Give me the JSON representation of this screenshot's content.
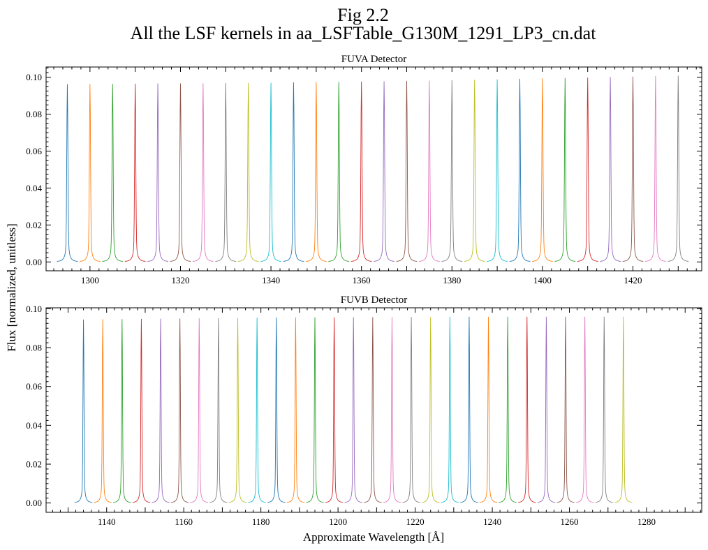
{
  "figure": {
    "title_line1": "Fig 2.2",
    "title_line2": "All the LSF kernels in aa_LSFTable_G130M_1291_LP3_cn.dat",
    "ylabel": "Flux [normalized, unitless]",
    "xlabel": "Approximate Wavelength [Å]"
  },
  "colors": [
    "#1f77b4",
    "#ff7f0e",
    "#2ca02c",
    "#d62728",
    "#9467bd",
    "#8c564b",
    "#e377c2",
    "#7f7f7f",
    "#bcbd22",
    "#17becf"
  ],
  "chart_data": [
    {
      "type": "line",
      "title": "FUVA Detector",
      "xlabel": "",
      "ylabel": "Flux [normalized, unitless]",
      "xlim": [
        1290.3,
        1435.2
      ],
      "ylim": [
        -0.0048,
        0.1055
      ],
      "xticks": [
        1300,
        1320,
        1340,
        1360,
        1380,
        1400,
        1420
      ],
      "yticks": [
        0.0,
        0.02,
        0.04,
        0.06,
        0.08,
        0.1
      ],
      "ytick_labels": [
        "0.00",
        "0.02",
        "0.04",
        "0.06",
        "0.08",
        "0.10"
      ],
      "kernel_half_width": 2.3,
      "kernel_sigma": 0.12,
      "series": [
        {
          "center": 1295,
          "peak": 0.0962
        },
        {
          "center": 1300,
          "peak": 0.0963
        },
        {
          "center": 1305,
          "peak": 0.0964
        },
        {
          "center": 1310,
          "peak": 0.0965
        },
        {
          "center": 1315,
          "peak": 0.0966
        },
        {
          "center": 1320,
          "peak": 0.0966
        },
        {
          "center": 1325,
          "peak": 0.0967
        },
        {
          "center": 1330,
          "peak": 0.0968
        },
        {
          "center": 1335,
          "peak": 0.0969
        },
        {
          "center": 1340,
          "peak": 0.097
        },
        {
          "center": 1345,
          "peak": 0.0972
        },
        {
          "center": 1350,
          "peak": 0.0973
        },
        {
          "center": 1355,
          "peak": 0.0974
        },
        {
          "center": 1360,
          "peak": 0.0976
        },
        {
          "center": 1365,
          "peak": 0.0978
        },
        {
          "center": 1370,
          "peak": 0.098
        },
        {
          "center": 1375,
          "peak": 0.0982
        },
        {
          "center": 1380,
          "peak": 0.0984
        },
        {
          "center": 1385,
          "peak": 0.0986
        },
        {
          "center": 1390,
          "peak": 0.0988
        },
        {
          "center": 1395,
          "peak": 0.0991
        },
        {
          "center": 1400,
          "peak": 0.0993
        },
        {
          "center": 1405,
          "peak": 0.0996
        },
        {
          "center": 1410,
          "peak": 0.0998
        },
        {
          "center": 1415,
          "peak": 0.1001
        },
        {
          "center": 1420,
          "peak": 0.1003
        },
        {
          "center": 1425,
          "peak": 0.1006
        },
        {
          "center": 1430,
          "peak": 0.1008
        }
      ]
    },
    {
      "type": "line",
      "title": "FUVB Detector",
      "xlabel": "Approximate Wavelength [Å]",
      "ylabel": "Flux [normalized, unitless]",
      "xlim": [
        1124.3,
        1294.3
      ],
      "ylim": [
        -0.0048,
        0.1005
      ],
      "xticks": [
        1140,
        1160,
        1180,
        1200,
        1220,
        1240,
        1260,
        1280
      ],
      "yticks": [
        0.0,
        0.02,
        0.04,
        0.06,
        0.08,
        0.1
      ],
      "ytick_labels": [
        "0.00",
        "0.02",
        "0.04",
        "0.06",
        "0.08",
        "0.10"
      ],
      "kernel_half_width": 2.3,
      "kernel_sigma": 0.12,
      "series": [
        {
          "center": 1134,
          "peak": 0.0945
        },
        {
          "center": 1139,
          "peak": 0.0946
        },
        {
          "center": 1144,
          "peak": 0.0947
        },
        {
          "center": 1149,
          "peak": 0.0948
        },
        {
          "center": 1154,
          "peak": 0.0949
        },
        {
          "center": 1159,
          "peak": 0.095
        },
        {
          "center": 1164,
          "peak": 0.0951
        },
        {
          "center": 1169,
          "peak": 0.0952
        },
        {
          "center": 1174,
          "peak": 0.0953
        },
        {
          "center": 1179,
          "peak": 0.0954
        },
        {
          "center": 1184,
          "peak": 0.0955
        },
        {
          "center": 1189,
          "peak": 0.0955
        },
        {
          "center": 1194,
          "peak": 0.0956
        },
        {
          "center": 1199,
          "peak": 0.0956
        },
        {
          "center": 1204,
          "peak": 0.0957
        },
        {
          "center": 1209,
          "peak": 0.0957
        },
        {
          "center": 1214,
          "peak": 0.0958
        },
        {
          "center": 1219,
          "peak": 0.0958
        },
        {
          "center": 1224,
          "peak": 0.0958
        },
        {
          "center": 1229,
          "peak": 0.0959
        },
        {
          "center": 1234,
          "peak": 0.0959
        },
        {
          "center": 1239,
          "peak": 0.0959
        },
        {
          "center": 1244,
          "peak": 0.0959
        },
        {
          "center": 1249,
          "peak": 0.0959
        },
        {
          "center": 1254,
          "peak": 0.0959
        },
        {
          "center": 1259,
          "peak": 0.0959
        },
        {
          "center": 1264,
          "peak": 0.0959
        },
        {
          "center": 1269,
          "peak": 0.0959
        },
        {
          "center": 1274,
          "peak": 0.0959
        }
      ]
    }
  ]
}
